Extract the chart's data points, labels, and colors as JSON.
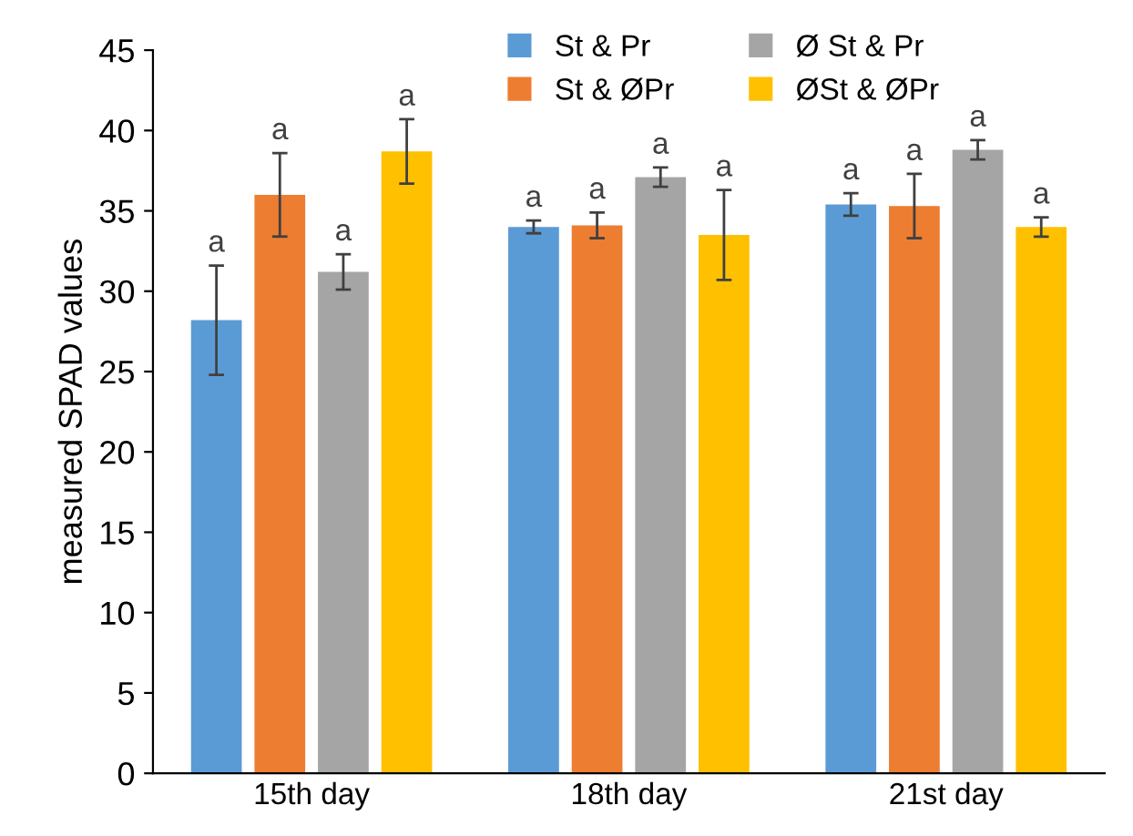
{
  "chart_data": {
    "type": "bar",
    "ylabel": "measured SPAD values",
    "categories": [
      "15th day",
      "18th day",
      "21st day"
    ],
    "ylim": [
      0,
      45
    ],
    "yticks": [
      0,
      5,
      10,
      15,
      20,
      25,
      30,
      35,
      40,
      45
    ],
    "grid": false,
    "legend": "top",
    "series": [
      {
        "name": "St & Pr",
        "color": "#5b9bd5",
        "values": [
          28.2,
          34.0,
          35.4
        ],
        "errors": [
          3.4,
          0.4,
          0.7
        ],
        "value_labels": [
          "a",
          "a",
          "a"
        ]
      },
      {
        "name": "St & ØPr",
        "color": "#ed7d31",
        "values": [
          36.0,
          34.1,
          35.3
        ],
        "errors": [
          2.6,
          0.8,
          2.0
        ],
        "value_labels": [
          "a",
          "a",
          "a"
        ]
      },
      {
        "name": "Ø St & Pr",
        "color": "#a5a5a5",
        "values": [
          31.2,
          37.1,
          38.8
        ],
        "errors": [
          1.1,
          0.6,
          0.6
        ],
        "value_labels": [
          "a",
          "a",
          "a"
        ]
      },
      {
        "name": "ØSt & ØPr",
        "color": "#ffc000",
        "values": [
          38.7,
          33.5,
          34.0
        ],
        "errors": [
          2.0,
          2.8,
          0.6
        ],
        "value_labels": [
          "a",
          "a",
          "a"
        ]
      }
    ]
  }
}
